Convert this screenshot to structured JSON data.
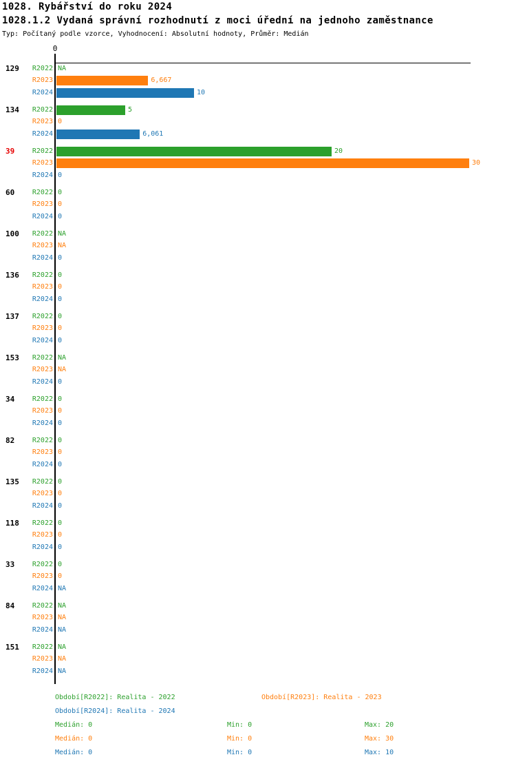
{
  "header": {
    "title": "1028. Rybářství do roku 2024",
    "subtitle": "1028.1.2 Vydaná správní rozhodnutí z moci úřední na jednoho zaměstnance",
    "meta": "Typ: Počítaný podle vzorce, Vyhodnocení: Absolutní hodnoty, Průměr: Medián"
  },
  "colors": {
    "series": [
      "#2ca02c",
      "#ff7f0e",
      "#1f77b4"
    ],
    "highlight_group_label": "#e60000",
    "group_label": "#000000",
    "axis": "#000000"
  },
  "chart_data": {
    "type": "bar",
    "orientation": "horizontal",
    "title": "1028.1.2 Vydaná správní rozhodnutí z moci úřední na jednoho zaměstnance",
    "xlabel": "",
    "ylabel": "",
    "xlim": [
      0,
      30
    ],
    "axis_zero_label": "0",
    "grid": false,
    "series_labels": [
      "R2022",
      "R2023",
      "R2024"
    ],
    "groups": [
      {
        "label": "129",
        "highlight": false,
        "values": [
          "NA",
          "6,667",
          "10"
        ],
        "numeric": [
          null,
          6.667,
          10
        ]
      },
      {
        "label": "134",
        "highlight": false,
        "values": [
          "5",
          "0",
          "6,061"
        ],
        "numeric": [
          5,
          0,
          6.061
        ]
      },
      {
        "label": "39",
        "highlight": true,
        "values": [
          "20",
          "30",
          "0"
        ],
        "numeric": [
          20,
          30,
          0
        ]
      },
      {
        "label": "60",
        "highlight": false,
        "values": [
          "0",
          "0",
          "0"
        ],
        "numeric": [
          0,
          0,
          0
        ]
      },
      {
        "label": "100",
        "highlight": false,
        "values": [
          "NA",
          "NA",
          "0"
        ],
        "numeric": [
          null,
          null,
          0
        ]
      },
      {
        "label": "136",
        "highlight": false,
        "values": [
          "0",
          "0",
          "0"
        ],
        "numeric": [
          0,
          0,
          0
        ]
      },
      {
        "label": "137",
        "highlight": false,
        "values": [
          "0",
          "0",
          "0"
        ],
        "numeric": [
          0,
          0,
          0
        ]
      },
      {
        "label": "153",
        "highlight": false,
        "values": [
          "NA",
          "NA",
          "0"
        ],
        "numeric": [
          null,
          null,
          0
        ]
      },
      {
        "label": "34",
        "highlight": false,
        "values": [
          "0",
          "0",
          "0"
        ],
        "numeric": [
          0,
          0,
          0
        ]
      },
      {
        "label": "82",
        "highlight": false,
        "values": [
          "0",
          "0",
          "0"
        ],
        "numeric": [
          0,
          0,
          0
        ]
      },
      {
        "label": "135",
        "highlight": false,
        "values": [
          "0",
          "0",
          "0"
        ],
        "numeric": [
          0,
          0,
          0
        ]
      },
      {
        "label": "118",
        "highlight": false,
        "values": [
          "0",
          "0",
          "0"
        ],
        "numeric": [
          0,
          0,
          0
        ]
      },
      {
        "label": "33",
        "highlight": false,
        "values": [
          "0",
          "0",
          "NA"
        ],
        "numeric": [
          0,
          0,
          null
        ]
      },
      {
        "label": "84",
        "highlight": false,
        "values": [
          "NA",
          "NA",
          "NA"
        ],
        "numeric": [
          null,
          null,
          null
        ]
      },
      {
        "label": "151",
        "highlight": false,
        "values": [
          "NA",
          "NA",
          "NA"
        ],
        "numeric": [
          null,
          null,
          null
        ]
      }
    ]
  },
  "legend": {
    "r2022": "Období[R2022]: Realita - 2022",
    "r2023": "Období[R2023]: Realita - 2023",
    "r2024": "Období[R2024]: Realita - 2024"
  },
  "stats": [
    {
      "median": "Medián: 0",
      "min": "Min: 0",
      "max": "Max: 20"
    },
    {
      "median": "Medián: 0",
      "min": "Min: 0",
      "max": "Max: 30"
    },
    {
      "median": "Medián: 0",
      "min": "Min: 0",
      "max": "Max: 10"
    }
  ]
}
